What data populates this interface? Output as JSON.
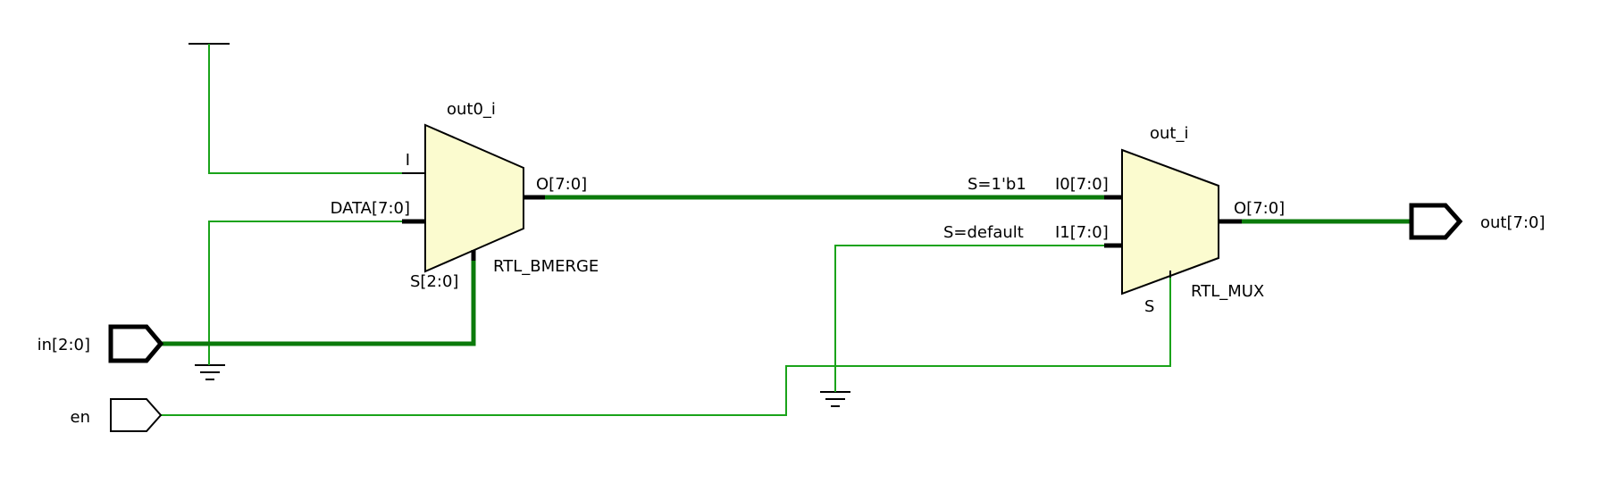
{
  "ports": {
    "in": "in[2:0]",
    "en": "en",
    "out": "out[7:0]"
  },
  "bmerge": {
    "instance": "out0_i",
    "type": "RTL_BMERGE",
    "pin_i": "I",
    "pin_data": "DATA[7:0]",
    "pin_s": "S[2:0]",
    "pin_o": "O[7:0]"
  },
  "mux": {
    "instance": "out_i",
    "type": "RTL_MUX",
    "pin_i0": "I0[7:0]",
    "pin_i1": "I1[7:0]",
    "pin_s": "S",
    "pin_o": "O[7:0]",
    "sel_i0": "S=1'b1",
    "sel_i1": "S=default"
  },
  "colors": {
    "wire": "#1aa31a",
    "bus": "#0b7a0b",
    "cell_fill": "#fbfbcf"
  }
}
